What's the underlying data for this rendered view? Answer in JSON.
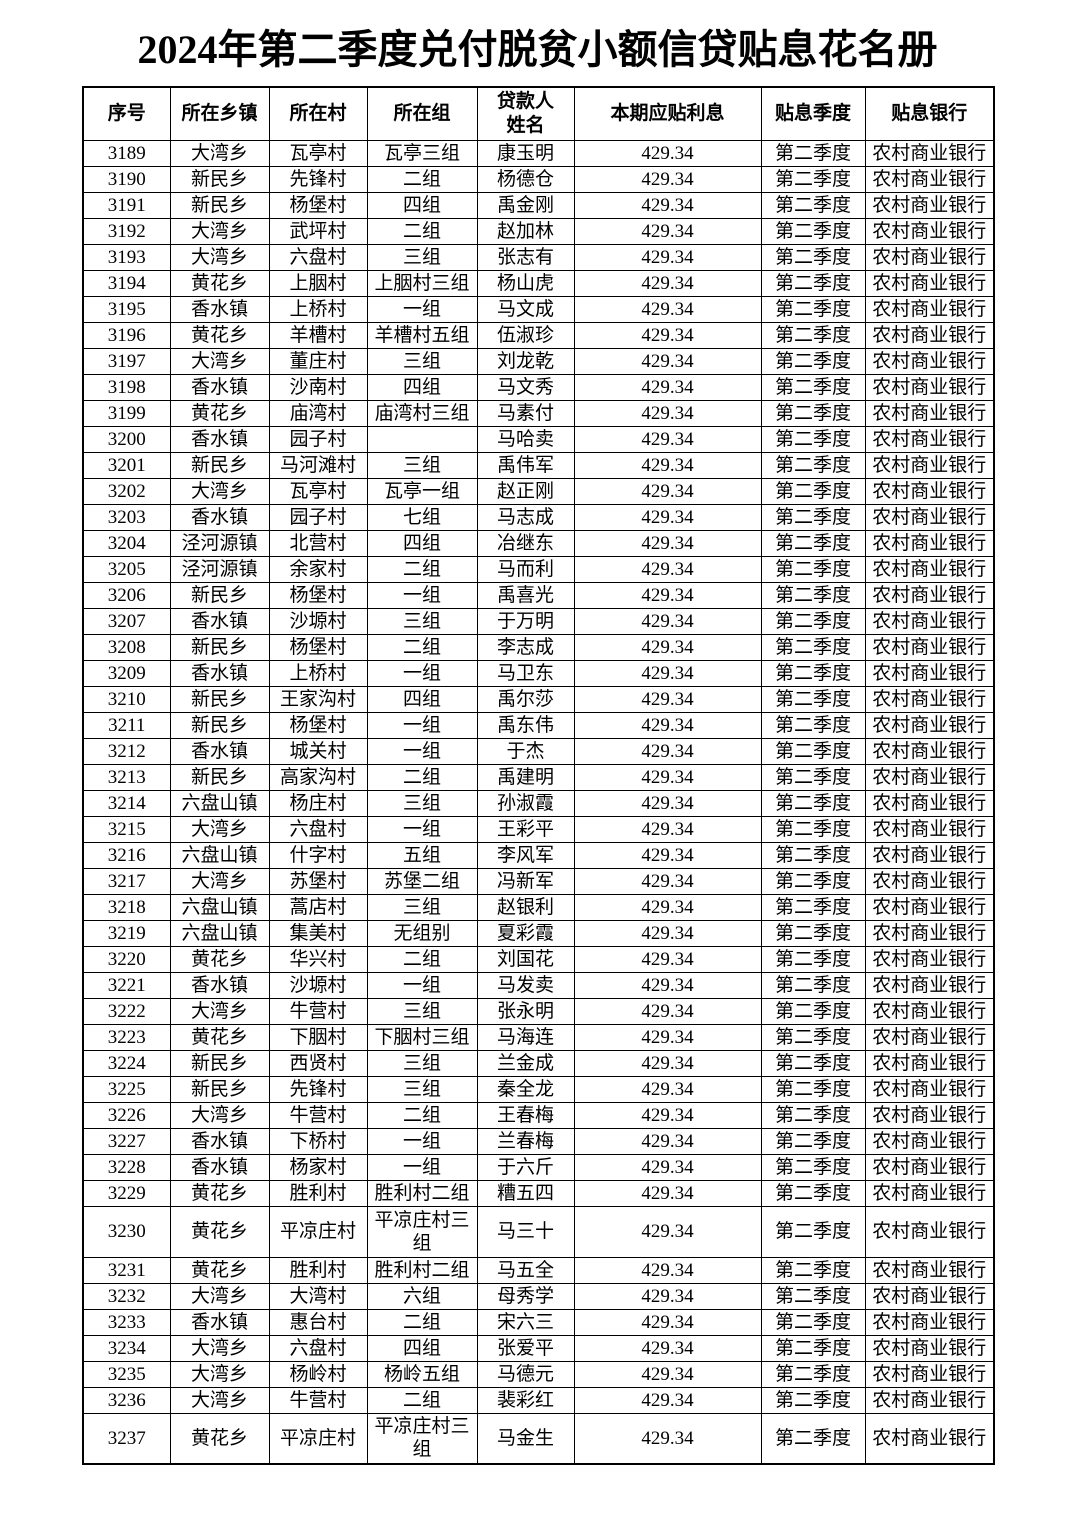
{
  "title": "2024年第二季度兑付脱贫小额信贷贴息花名册",
  "table": {
    "headers": [
      "序号",
      "所在乡镇",
      "所在村",
      "所在组",
      "贷款人\n姓名",
      "本期应贴利息",
      "贴息季度",
      "贴息银行"
    ],
    "rows": [
      [
        "3189",
        "大湾乡",
        "瓦亭村",
        "瓦亭三组",
        "康玉明",
        "429.34",
        "第二季度",
        "农村商业银行"
      ],
      [
        "3190",
        "新民乡",
        "先锋村",
        "二组",
        "杨德仓",
        "429.34",
        "第二季度",
        "农村商业银行"
      ],
      [
        "3191",
        "新民乡",
        "杨堡村",
        "四组",
        "禹金刚",
        "429.34",
        "第二季度",
        "农村商业银行"
      ],
      [
        "3192",
        "大湾乡",
        "武坪村",
        "二组",
        "赵加林",
        "429.34",
        "第二季度",
        "农村商业银行"
      ],
      [
        "3193",
        "大湾乡",
        "六盘村",
        "三组",
        "张志有",
        "429.34",
        "第二季度",
        "农村商业银行"
      ],
      [
        "3194",
        "黄花乡",
        "上胭村",
        "上胭村三组",
        "杨山虎",
        "429.34",
        "第二季度",
        "农村商业银行"
      ],
      [
        "3195",
        "香水镇",
        "上桥村",
        "一组",
        "马文成",
        "429.34",
        "第二季度",
        "农村商业银行"
      ],
      [
        "3196",
        "黄花乡",
        "羊槽村",
        "羊槽村五组",
        "伍淑珍",
        "429.34",
        "第二季度",
        "农村商业银行"
      ],
      [
        "3197",
        "大湾乡",
        "董庄村",
        "三组",
        "刘龙乾",
        "429.34",
        "第二季度",
        "农村商业银行"
      ],
      [
        "3198",
        "香水镇",
        "沙南村",
        "四组",
        "马文秀",
        "429.34",
        "第二季度",
        "农村商业银行"
      ],
      [
        "3199",
        "黄花乡",
        "庙湾村",
        "庙湾村三组",
        "马素付",
        "429.34",
        "第二季度",
        "农村商业银行"
      ],
      [
        "3200",
        "香水镇",
        "园子村",
        "",
        "马哈卖",
        "429.34",
        "第二季度",
        "农村商业银行"
      ],
      [
        "3201",
        "新民乡",
        "马河滩村",
        "三组",
        "禹伟军",
        "429.34",
        "第二季度",
        "农村商业银行"
      ],
      [
        "3202",
        "大湾乡",
        "瓦亭村",
        "瓦亭一组",
        "赵正刚",
        "429.34",
        "第二季度",
        "农村商业银行"
      ],
      [
        "3203",
        "香水镇",
        "园子村",
        "七组",
        "马志成",
        "429.34",
        "第二季度",
        "农村商业银行"
      ],
      [
        "3204",
        "泾河源镇",
        "北营村",
        "四组",
        "冶继东",
        "429.34",
        "第二季度",
        "农村商业银行"
      ],
      [
        "3205",
        "泾河源镇",
        "余家村",
        "二组",
        "马而利",
        "429.34",
        "第二季度",
        "农村商业银行"
      ],
      [
        "3206",
        "新民乡",
        "杨堡村",
        "一组",
        "禹喜光",
        "429.34",
        "第二季度",
        "农村商业银行"
      ],
      [
        "3207",
        "香水镇",
        "沙塬村",
        "三组",
        "于万明",
        "429.34",
        "第二季度",
        "农村商业银行"
      ],
      [
        "3208",
        "新民乡",
        "杨堡村",
        "二组",
        "李志成",
        "429.34",
        "第二季度",
        "农村商业银行"
      ],
      [
        "3209",
        "香水镇",
        "上桥村",
        "一组",
        "马卫东",
        "429.34",
        "第二季度",
        "农村商业银行"
      ],
      [
        "3210",
        "新民乡",
        "王家沟村",
        "四组",
        "禹尔莎",
        "429.34",
        "第二季度",
        "农村商业银行"
      ],
      [
        "3211",
        "新民乡",
        "杨堡村",
        "一组",
        "禹东伟",
        "429.34",
        "第二季度",
        "农村商业银行"
      ],
      [
        "3212",
        "香水镇",
        "城关村",
        "一组",
        "于杰",
        "429.34",
        "第二季度",
        "农村商业银行"
      ],
      [
        "3213",
        "新民乡",
        "高家沟村",
        "二组",
        "禹建明",
        "429.34",
        "第二季度",
        "农村商业银行"
      ],
      [
        "3214",
        "六盘山镇",
        "杨庄村",
        "三组",
        "孙淑霞",
        "429.34",
        "第二季度",
        "农村商业银行"
      ],
      [
        "3215",
        "大湾乡",
        "六盘村",
        "一组",
        "王彩平",
        "429.34",
        "第二季度",
        "农村商业银行"
      ],
      [
        "3216",
        "六盘山镇",
        "什字村",
        "五组",
        "李风军",
        "429.34",
        "第二季度",
        "农村商业银行"
      ],
      [
        "3217",
        "大湾乡",
        "苏堡村",
        "苏堡二组",
        "冯新军",
        "429.34",
        "第二季度",
        "农村商业银行"
      ],
      [
        "3218",
        "六盘山镇",
        "蒿店村",
        "三组",
        "赵银利",
        "429.34",
        "第二季度",
        "农村商业银行"
      ],
      [
        "3219",
        "六盘山镇",
        "集美村",
        "无组别",
        "夏彩霞",
        "429.34",
        "第二季度",
        "农村商业银行"
      ],
      [
        "3220",
        "黄花乡",
        "华兴村",
        "二组",
        "刘国花",
        "429.34",
        "第二季度",
        "农村商业银行"
      ],
      [
        "3221",
        "香水镇",
        "沙塬村",
        "一组",
        "马发卖",
        "429.34",
        "第二季度",
        "农村商业银行"
      ],
      [
        "3222",
        "大湾乡",
        "牛营村",
        "三组",
        "张永明",
        "429.34",
        "第二季度",
        "农村商业银行"
      ],
      [
        "3223",
        "黄花乡",
        "下胭村",
        "下胭村三组",
        "马海连",
        "429.34",
        "第二季度",
        "农村商业银行"
      ],
      [
        "3224",
        "新民乡",
        "西贤村",
        "三组",
        "兰金成",
        "429.34",
        "第二季度",
        "农村商业银行"
      ],
      [
        "3225",
        "新民乡",
        "先锋村",
        "三组",
        "秦全龙",
        "429.34",
        "第二季度",
        "农村商业银行"
      ],
      [
        "3226",
        "大湾乡",
        "牛营村",
        "二组",
        "王春梅",
        "429.34",
        "第二季度",
        "农村商业银行"
      ],
      [
        "3227",
        "香水镇",
        "下桥村",
        "一组",
        "兰春梅",
        "429.34",
        "第二季度",
        "农村商业银行"
      ],
      [
        "3228",
        "香水镇",
        "杨家村",
        "一组",
        "于六斤",
        "429.34",
        "第二季度",
        "农村商业银行"
      ],
      [
        "3229",
        "黄花乡",
        "胜利村",
        "胜利村二组",
        "糟五四",
        "429.34",
        "第二季度",
        "农村商业银行"
      ],
      [
        "3230",
        "黄花乡",
        "平凉庄村",
        "平凉庄村三组",
        "马三十",
        "429.34",
        "第二季度",
        "农村商业银行"
      ],
      [
        "3231",
        "黄花乡",
        "胜利村",
        "胜利村二组",
        "马五全",
        "429.34",
        "第二季度",
        "农村商业银行"
      ],
      [
        "3232",
        "大湾乡",
        "大湾村",
        "六组",
        "母秀学",
        "429.34",
        "第二季度",
        "农村商业银行"
      ],
      [
        "3233",
        "香水镇",
        "惠台村",
        "二组",
        "宋六三",
        "429.34",
        "第二季度",
        "农村商业银行"
      ],
      [
        "3234",
        "大湾乡",
        "六盘村",
        "四组",
        "张爱平",
        "429.34",
        "第二季度",
        "农村商业银行"
      ],
      [
        "3235",
        "大湾乡",
        "杨岭村",
        "杨岭五组",
        "马德元",
        "429.34",
        "第二季度",
        "农村商业银行"
      ],
      [
        "3236",
        "大湾乡",
        "牛营村",
        "二组",
        "裴彩红",
        "429.34",
        "第二季度",
        "农村商业银行"
      ],
      [
        "3237",
        "黄花乡",
        "平凉庄村",
        "平凉庄村三组",
        "马金生",
        "429.34",
        "第二季度",
        "农村商业银行"
      ]
    ]
  }
}
